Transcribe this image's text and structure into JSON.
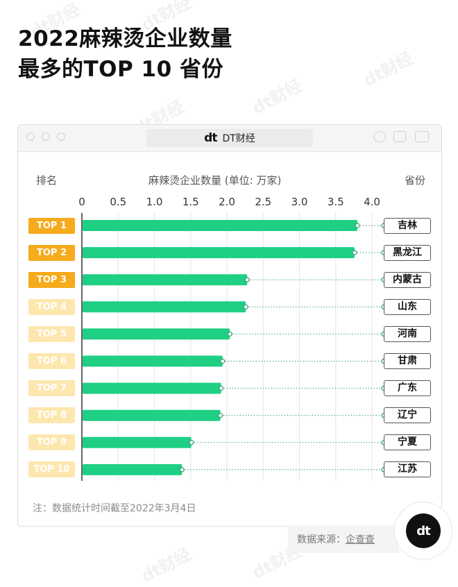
{
  "title": {
    "line1": "2022麻辣烫企业数量",
    "line2": "最多的TOP 10 省份"
  },
  "watermark_text": "dt财经",
  "window": {
    "brand_logo": "dt",
    "brand_text": "DT财经"
  },
  "headers": {
    "rank": "排名",
    "metric": "麻辣烫企业数量 (单位: 万家)",
    "province": "省份"
  },
  "colors": {
    "bar": "#1ecf84",
    "rank_top": "#f6aa1c",
    "rank_rest": "#fde7ae",
    "rank_rest_text": "#ffffff"
  },
  "chart_data": {
    "type": "bar",
    "orientation": "horizontal",
    "xlabel": "麻辣烫企业数量 (单位: 万家)",
    "xlim": [
      0,
      4.0
    ],
    "xticks": [
      "0",
      "0.5",
      "1.0",
      "1.5",
      "2.0",
      "2.5",
      "3.0",
      "3.5",
      "4.0"
    ],
    "ranks": [
      "TOP 1",
      "TOP 2",
      "TOP 3",
      "TOP 4",
      "TOP 5",
      "TOP 6",
      "TOP 7",
      "TOP 8",
      "TOP 9",
      "TOP 10"
    ],
    "categories": [
      "吉林",
      "黑龙江",
      "内蒙古",
      "山东",
      "河南",
      "甘肃",
      "广东",
      "辽宁",
      "宁夏",
      "江苏"
    ],
    "values": [
      3.8,
      3.76,
      2.28,
      2.26,
      2.04,
      1.94,
      1.92,
      1.91,
      1.51,
      1.38
    ],
    "grid": true
  },
  "note": "注：数据统计时间截至2022年3月4日",
  "source": {
    "label": "数据来源：",
    "name": "企查查"
  },
  "badge": {
    "logo": "dt"
  }
}
